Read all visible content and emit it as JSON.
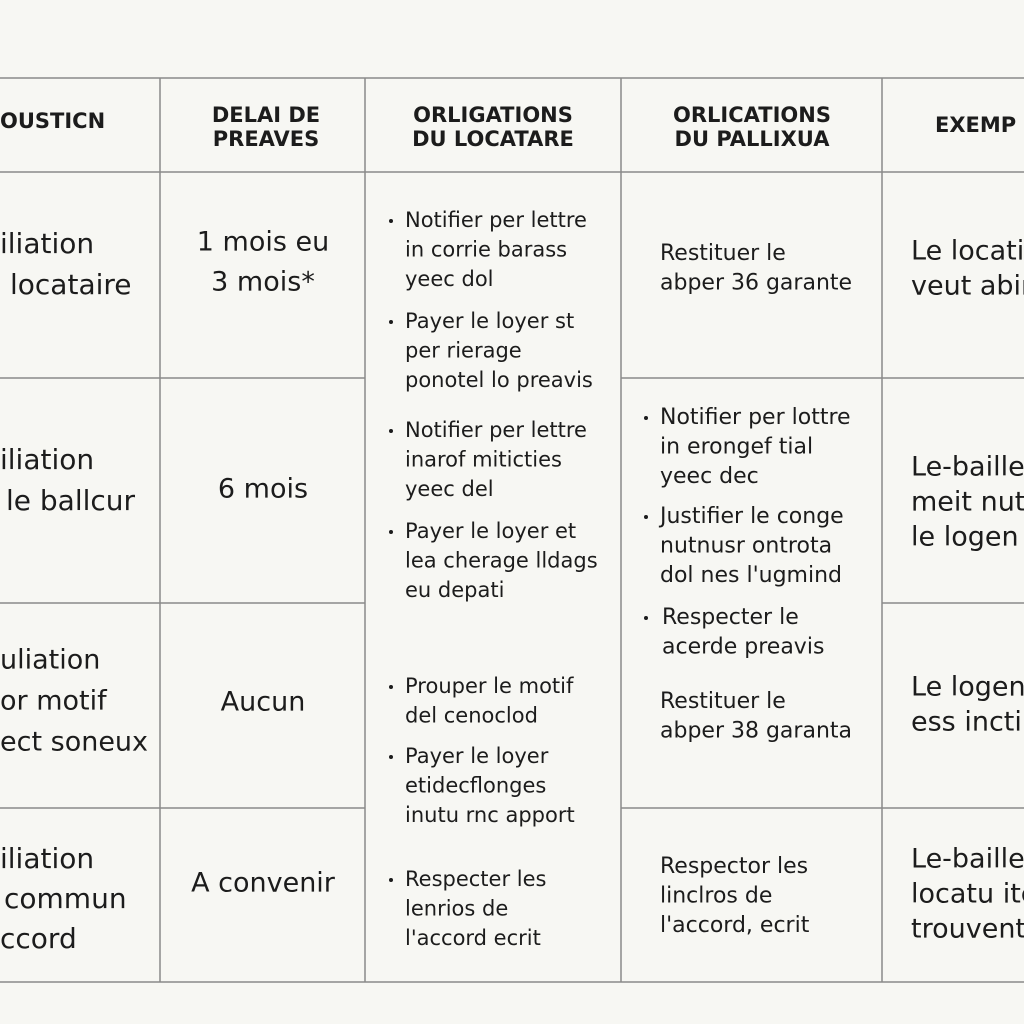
{
  "table": {
    "headers": [
      [
        "OUSTICN"
      ],
      [
        "DELAI DE",
        "PREAVES"
      ],
      [
        "ORLIGATIONS",
        "DU LOCATARE"
      ],
      [
        "ORLICATIONS",
        "DU PALLIXUA"
      ],
      [
        "EXEMP"
      ]
    ],
    "situations": [
      [
        "iliation",
        "locataire"
      ],
      [
        "iliation",
        "le ballcur"
      ],
      [
        "uliation",
        "or motif",
        "ect soneux"
      ],
      [
        "iliation",
        "commun",
        "ccord"
      ]
    ],
    "delais": [
      [
        "1 mois eu",
        "3 mois*"
      ],
      [
        "6 mois"
      ],
      [
        "Aucun"
      ],
      [
        "A convenir"
      ]
    ],
    "locataire_obligations": [
      [
        "Notifier per lettre",
        "in corrie barass",
        "yeec dol"
      ],
      [
        "Payer le loyer st",
        "per rierage",
        "ponotel lo preavis"
      ],
      [
        "Notifier per lettre",
        "inarof miticties",
        "yeec del"
      ],
      [
        "Payer le loyer et",
        "lea cherage lldags",
        "eu depati"
      ],
      [
        "Prouper le motif",
        "del cenoclod"
      ],
      [
        "Payer le loyer",
        "etidecflonges",
        "inutu rnc apport"
      ],
      [
        "Respecter les",
        "lenrios de",
        "l'accord ecrit"
      ]
    ],
    "bailleur_obligations": [
      [
        "Restituer le",
        "abper 36 garante"
      ],
      [
        "Notifier per lottre",
        "in erongef tial",
        "yeec dec"
      ],
      [
        "Justifier le conge",
        "nutnusr ontrota",
        "dol nes l'ugmind"
      ],
      [
        "Respecter le",
        "acerde preavis"
      ],
      [
        "Restituer le",
        "abper 38 garanta"
      ],
      [
        "Respector les",
        "linclros de",
        "l'accord, ecrit"
      ]
    ],
    "exemples": [
      [
        "Le locati",
        "veut abir"
      ],
      [
        "Le-baille",
        "meit nut",
        "le logen"
      ],
      [
        "Le logen",
        "ess inctir"
      ],
      [
        "Le-baille",
        "locatu ite",
        "trouvent"
      ]
    ]
  }
}
